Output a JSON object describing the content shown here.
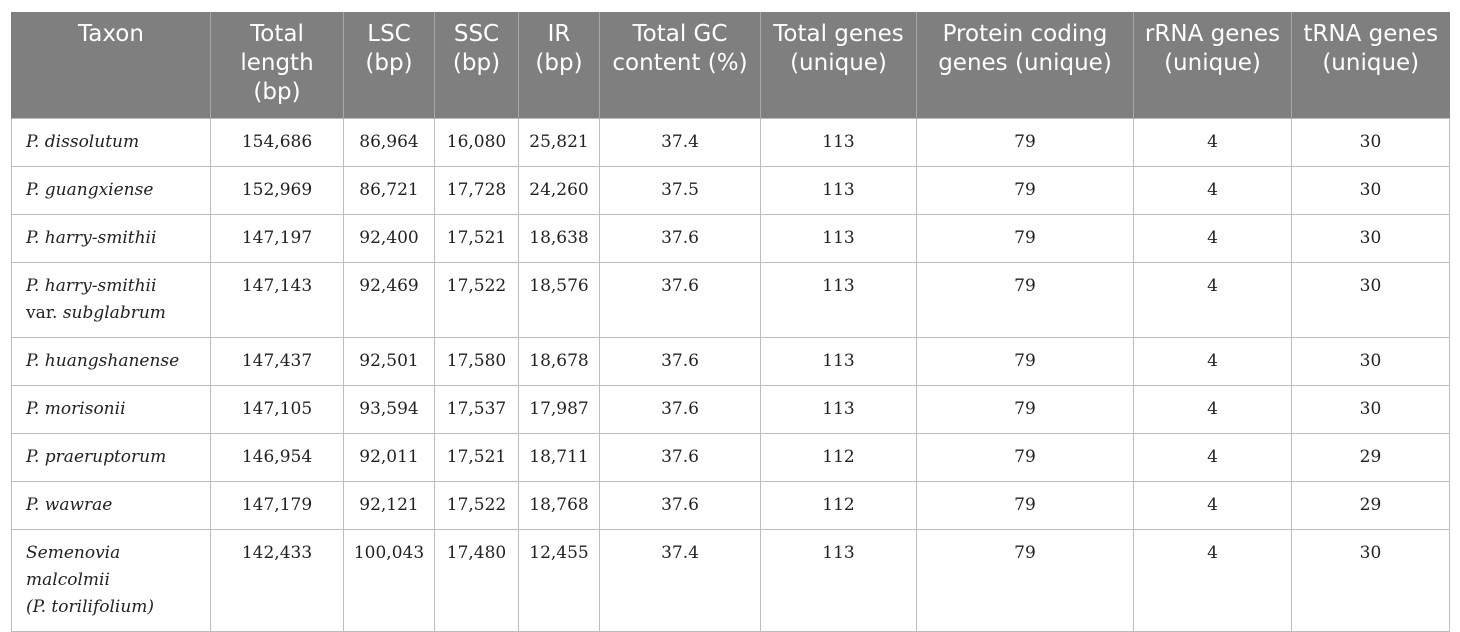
{
  "columns": [
    "Taxon",
    "Total length (bp)",
    "LSC (bp)",
    "SSC (bp)",
    "IR (bp)",
    "Total GC content (%)",
    "Total genes (unique)",
    "Protein coding genes (unique)",
    "rRNA genes (unique)",
    "tRNA genes (unique)"
  ],
  "rows": [
    {
      "taxon": "P. dissolutum",
      "taxon_extra": "",
      "taxon_extra_italic": "",
      "total_length": "154,686",
      "lsc": "86,964",
      "ssc": "16,080",
      "ir": "25,821",
      "gc": "37.4",
      "total_genes": "113",
      "protein": "79",
      "rrna": "4",
      "trna": "30"
    },
    {
      "taxon": "P. guangxiense",
      "taxon_extra": "",
      "taxon_extra_italic": "",
      "total_length": "152,969",
      "lsc": "86,721",
      "ssc": "17,728",
      "ir": "24,260",
      "gc": "37.5",
      "total_genes": "113",
      "protein": "79",
      "rrna": "4",
      "trna": "30"
    },
    {
      "taxon": "P. harry-smithii",
      "taxon_extra": "",
      "taxon_extra_italic": "",
      "total_length": "147,197",
      "lsc": "92,400",
      "ssc": "17,521",
      "ir": "18,638",
      "gc": "37.6",
      "total_genes": "113",
      "protein": "79",
      "rrna": "4",
      "trna": "30"
    },
    {
      "taxon": "P. harry-smithii",
      "taxon_extra": "var.",
      "taxon_extra_italic": "subglabrum",
      "total_length": "147,143",
      "lsc": "92,469",
      "ssc": "17,522",
      "ir": "18,576",
      "gc": "37.6",
      "total_genes": "113",
      "protein": "79",
      "rrna": "4",
      "trna": "30"
    },
    {
      "taxon": "P. huangshanense",
      "taxon_extra": "",
      "taxon_extra_italic": "",
      "total_length": "147,437",
      "lsc": "92,501",
      "ssc": "17,580",
      "ir": "18,678",
      "gc": "37.6",
      "total_genes": "113",
      "protein": "79",
      "rrna": "4",
      "trna": "30"
    },
    {
      "taxon": "P. morisonii",
      "taxon_extra": "",
      "taxon_extra_italic": "",
      "total_length": "147,105",
      "lsc": "93,594",
      "ssc": "17,537",
      "ir": "17,987",
      "gc": "37.6",
      "total_genes": "113",
      "protein": "79",
      "rrna": "4",
      "trna": "30"
    },
    {
      "taxon": "P. praeruptorum",
      "taxon_extra": "",
      "taxon_extra_italic": "",
      "total_length": "146,954",
      "lsc": "92,011",
      "ssc": "17,521",
      "ir": "18,711",
      "gc": "37.6",
      "total_genes": "112",
      "protein": "79",
      "rrna": "4",
      "trna": "29"
    },
    {
      "taxon": "P. wawrae",
      "taxon_extra": "",
      "taxon_extra_italic": "",
      "total_length": "147,179",
      "lsc": "92,121",
      "ssc": "17,522",
      "ir": "18,768",
      "gc": "37.6",
      "total_genes": "112",
      "protein": "79",
      "rrna": "4",
      "trna": "29"
    },
    {
      "taxon": "Semenovia malcolmii",
      "taxon_extra": "(P. torilifolium)",
      "taxon_extra_italic": "",
      "total_length": "142,433",
      "lsc": "100,043",
      "ssc": "17,480",
      "ir": "12,455",
      "gc": "37.4",
      "total_genes": "113",
      "protein": "79",
      "rrna": "4",
      "trna": "30"
    }
  ],
  "colors": {
    "header_bg": "#7f7f7f",
    "header_text": "#ffffff",
    "grid": "#bdbdbd"
  }
}
